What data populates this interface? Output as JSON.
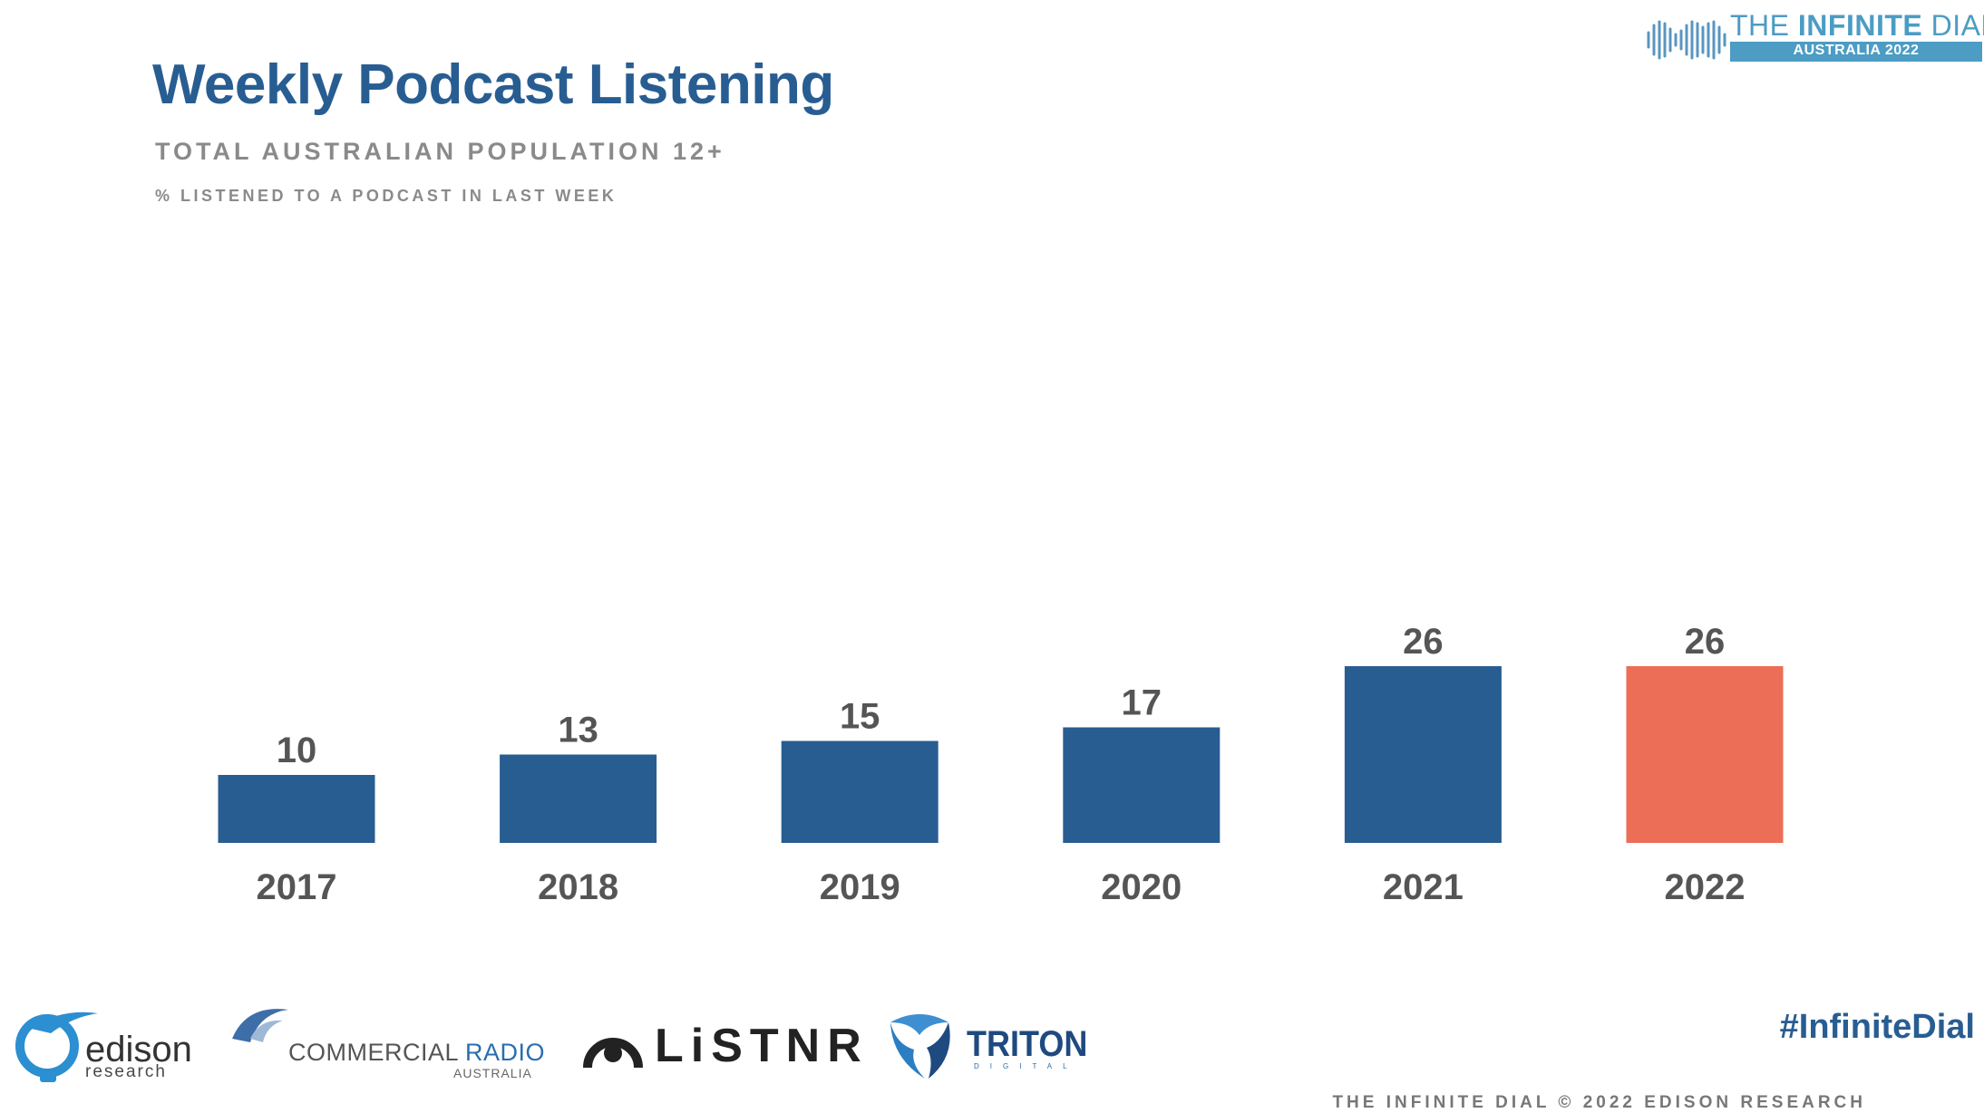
{
  "header": {
    "title": "Weekly Podcast Listening",
    "subtitle": "TOTAL AUSTRALIAN POPULATION 12+",
    "metric": "% LISTENED TO A PODCAST IN LAST WEEK"
  },
  "brand": {
    "name_light": "THE ",
    "name_bold": "INFINITE",
    "name_tail": " DIAL",
    "edition": "AUSTRALIA 2022"
  },
  "chart_data": {
    "type": "bar",
    "categories": [
      "2017",
      "2018",
      "2019",
      "2020",
      "2021",
      "2022"
    ],
    "values": [
      10,
      13,
      15,
      17,
      26,
      26
    ],
    "bar_colors": [
      "#285d92",
      "#285d92",
      "#285d92",
      "#285d92",
      "#285d92",
      "#ec6e56"
    ],
    "title": "Weekly Podcast Listening",
    "subtitle": "TOTAL AUSTRALIAN POPULATION 12+",
    "ylabel": "% LISTENED TO A PODCAST IN LAST WEEK",
    "ylim": [
      0,
      26
    ],
    "grid": false,
    "data_labels": true
  },
  "footer": {
    "edison": {
      "word": "edison",
      "sub": "research"
    },
    "cra": {
      "word_a": "COMMERCIAL ",
      "word_b": "RADIO",
      "sub": "AUSTRALIA"
    },
    "listnr": {
      "word": "LiSTNR"
    },
    "triton": {
      "word": "TRITON",
      "sub": "DIGITAL"
    },
    "hashtag": "#InfiniteDial",
    "copyright": "THE INFINITE DIAL  © 2022 EDISON RESEARCH"
  },
  "colors": {
    "primary": "#285d92",
    "highlight": "#ec6e56",
    "label": "#555555",
    "brand": "#4c9cc4"
  }
}
